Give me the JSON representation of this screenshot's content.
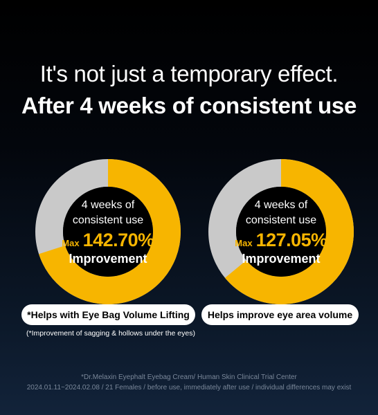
{
  "header": {
    "headline": "It's not just a temporary effect.",
    "subheadline": "After 4 weeks of consistent use"
  },
  "colors": {
    "accent": "#f7b500",
    "track": "#c9c9c9",
    "inner": "#000000"
  },
  "stats": [
    {
      "period_line1": "4 weeks of",
      "period_line2": "consistent use",
      "max_label": "Max",
      "value": "142.70%",
      "value_fraction": 0.7,
      "improvement_label": "Improvement",
      "pill_label": "*Helps with Eye Bag Volume Lifting"
    },
    {
      "period_line1": "4 weeks of",
      "period_line2": "consistent use",
      "max_label": "Max",
      "value": "127.05%",
      "value_fraction": 0.64,
      "improvement_label": "Improvement",
      "pill_label": "Helps improve eye area volume"
    }
  ],
  "notes": {
    "pill_note": "(*Improvement of sagging & hollows under the eyes)",
    "footer_line1": "*Dr.Melaxin Eyephalt Eyebag Cream/ Human Skin Clinical Trial Center",
    "footer_line2": "2024.01.11~2024.02.08 / 21 Females / before use, immediately after use / individual differences may exist"
  }
}
